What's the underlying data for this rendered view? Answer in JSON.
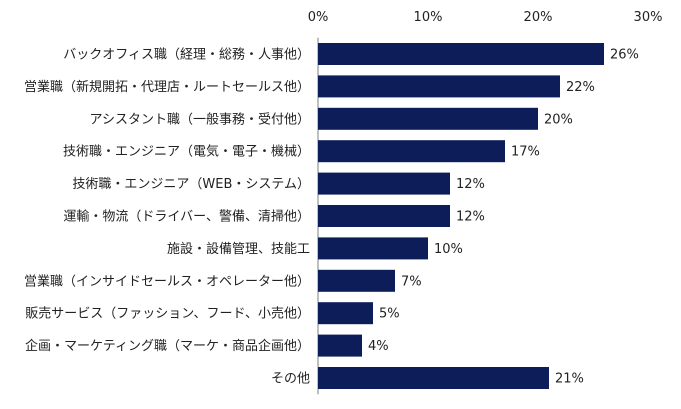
{
  "chart_data": {
    "type": "bar",
    "orientation": "horizontal",
    "categories": [
      "バックオフィス職（経理・総務・人事他）",
      "営業職（新規開拓・代理店・ルートセールス他）",
      "アシスタント職（一般事務・受付他）",
      "技術職・エンジニア（電気・電子・機械）",
      "技術職・エンジニア（WEB・システム）",
      "運輸・物流（ドライバー、警備、清掃他）",
      "施設・設備管理、技能工",
      "営業職（インサイドセールス・オペレーター他）",
      "販売サービス（ファッション、フード、小売他）",
      "企画・マーケティング職（マーケ・商品企画他）",
      "その他"
    ],
    "values": [
      26,
      22,
      20,
      17,
      12,
      12,
      10,
      7,
      5,
      4,
      21
    ],
    "value_labels": [
      "26%",
      "22%",
      "20%",
      "17%",
      "12%",
      "12%",
      "10%",
      "7%",
      "5%",
      "4%",
      "21%"
    ],
    "xlim": [
      0,
      30
    ],
    "xticks": [
      0,
      10,
      20,
      30
    ],
    "xtick_labels": [
      "0%",
      "10%",
      "20%",
      "30%"
    ],
    "x_axis_position": "top",
    "grid": false,
    "legend": "none",
    "bar_color": "#0d1d5a"
  }
}
